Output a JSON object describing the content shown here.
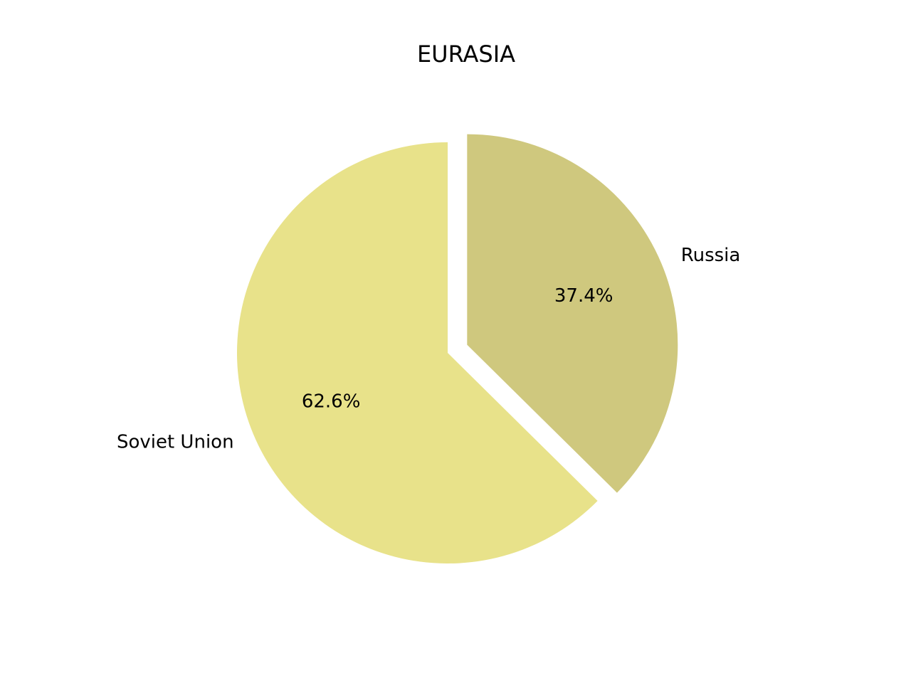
{
  "chart_data": {
    "type": "pie",
    "title": "EURASIA",
    "slices": [
      {
        "label": "Soviet Union",
        "value": 62.6,
        "pct_label": "62.6%",
        "color": "#e8e28a",
        "exploded": false
      },
      {
        "label": "Russia",
        "value": 37.4,
        "pct_label": "37.4%",
        "color": "#cfc87e",
        "exploded": true
      }
    ]
  }
}
